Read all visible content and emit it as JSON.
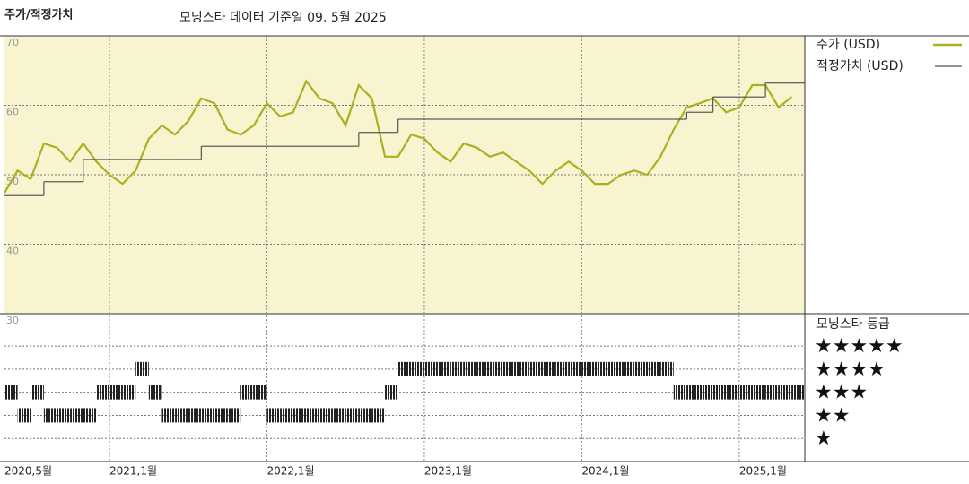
{
  "chart_data": [
    {
      "type": "line",
      "title": "주가/적정가치",
      "subtitle": "모닝스타 데이터 기준일 09. 5월 2025",
      "x": [
        "2020-05",
        "2020-06",
        "2020-07",
        "2020-08",
        "2020-09",
        "2020-10",
        "2020-11",
        "2020-12",
        "2021-01",
        "2021-02",
        "2021-03",
        "2021-04",
        "2021-05",
        "2021-06",
        "2021-07",
        "2021-08",
        "2021-09",
        "2021-10",
        "2021-11",
        "2021-12",
        "2022-01",
        "2022-02",
        "2022-03",
        "2022-04",
        "2022-05",
        "2022-06",
        "2022-07",
        "2022-08",
        "2022-09",
        "2022-10",
        "2022-11",
        "2022-12",
        "2023-01",
        "2023-02",
        "2023-03",
        "2023-04",
        "2023-05",
        "2023-06",
        "2023-07",
        "2023-08",
        "2023-09",
        "2023-10",
        "2023-11",
        "2023-12",
        "2024-01",
        "2024-02",
        "2024-03",
        "2024-04",
        "2024-05",
        "2024-06",
        "2024-07",
        "2024-08",
        "2024-09",
        "2024-10",
        "2024-11",
        "2024-12",
        "2025-01",
        "2025-02",
        "2025-03",
        "2025-04",
        "2025-05"
      ],
      "series": [
        {
          "name": "주가 (USD)",
          "color": "#aab021",
          "values": [
            47.4,
            50.6,
            49.4,
            54.5,
            53.9,
            51.9,
            54.5,
            51.9,
            50,
            48.7,
            50.6,
            55.2,
            57.1,
            55.8,
            57.7,
            61,
            60.3,
            56.5,
            55.8,
            57.1,
            60.3,
            58.4,
            59,
            63.5,
            61,
            60.3,
            57.1,
            62.9,
            61,
            52.6,
            52.6,
            55.8,
            55.2,
            53.2,
            51.9,
            54.5,
            53.9,
            52.6,
            53.2,
            51.9,
            50.6,
            48.7,
            50.6,
            51.9,
            50.6,
            48.7,
            48.7,
            50,
            50.6,
            50,
            52.6,
            56.5,
            59.7,
            60.3,
            61,
            59,
            59.7,
            62.9,
            62.9,
            59.7,
            61.2
          ]
        },
        {
          "name": "적정가치 (USD)",
          "color": "#555555",
          "values": [
            47,
            47,
            47,
            49,
            49,
            49,
            52.2,
            52.2,
            52.2,
            52.2,
            52.2,
            52.2,
            52.2,
            52.2,
            52.2,
            54.1,
            54.1,
            54.1,
            54.1,
            54.1,
            54.1,
            54.1,
            54.1,
            54.1,
            54.1,
            54.1,
            54.1,
            56.1,
            56.1,
            56.1,
            58,
            58,
            58,
            58,
            58,
            58,
            58,
            58,
            58,
            58,
            58,
            58,
            58,
            58,
            58,
            58,
            58,
            58,
            58,
            58,
            58,
            58,
            59,
            59,
            61.2,
            61.2,
            61.2,
            61.2,
            63.2,
            63.2,
            63.2
          ]
        }
      ],
      "ylim": [
        30,
        70
      ],
      "yticks": [
        30,
        40,
        50,
        60,
        70
      ],
      "xlim": [
        "2020-05",
        "2025-06"
      ],
      "xticks": [
        {
          "value": "2020-05",
          "label": "2020,5월"
        },
        {
          "value": "2021-01",
          "label": "2021,1월"
        },
        {
          "value": "2022-01",
          "label": "2022,1월"
        },
        {
          "value": "2023-01",
          "label": "2023,1월"
        },
        {
          "value": "2024-01",
          "label": "2024,1월"
        },
        {
          "value": "2025-01",
          "label": "2025,1월"
        }
      ],
      "grid": true
    },
    {
      "type": "rating",
      "title": "모닝스타 등급",
      "x": [
        "2020-05",
        "2020-06",
        "2020-07",
        "2020-08",
        "2020-09",
        "2020-10",
        "2020-11",
        "2020-12",
        "2021-01",
        "2021-02",
        "2021-03",
        "2021-04",
        "2021-05",
        "2021-06",
        "2021-07",
        "2021-08",
        "2021-09",
        "2021-10",
        "2021-11",
        "2021-12",
        "2022-01",
        "2022-02",
        "2022-03",
        "2022-04",
        "2022-05",
        "2022-06",
        "2022-07",
        "2022-08",
        "2022-09",
        "2022-10",
        "2022-11",
        "2022-12",
        "2023-01",
        "2023-02",
        "2023-03",
        "2023-04",
        "2023-05",
        "2023-06",
        "2023-07",
        "2023-08",
        "2023-09",
        "2023-10",
        "2023-11",
        "2023-12",
        "2024-01",
        "2024-02",
        "2024-03",
        "2024-04",
        "2024-05",
        "2024-06",
        "2024-07",
        "2024-08",
        "2024-09",
        "2024-10",
        "2024-11",
        "2024-12",
        "2025-01",
        "2025-02",
        "2025-03",
        "2025-04",
        "2025-05"
      ],
      "values": [
        3,
        2,
        3,
        2,
        2,
        2,
        2,
        3,
        3,
        3,
        4,
        3,
        2,
        2,
        2,
        2,
        2,
        2,
        3,
        3,
        2,
        2,
        2,
        2,
        2,
        2,
        2,
        2,
        2,
        3,
        4,
        4,
        4,
        4,
        4,
        4,
        4,
        4,
        4,
        4,
        4,
        4,
        4,
        4,
        4,
        4,
        4,
        4,
        4,
        4,
        4,
        3,
        3,
        3,
        3,
        3,
        3,
        3,
        3,
        3,
        3
      ],
      "ylim": [
        0,
        6.4
      ],
      "yticks": [
        {
          "value": 5,
          "label": "★★★★★"
        },
        {
          "value": 4,
          "label": "★★★★"
        },
        {
          "value": 3,
          "label": "★★★"
        },
        {
          "value": 2,
          "label": "★★"
        },
        {
          "value": 1,
          "label": "★"
        }
      ],
      "color": "#222222"
    }
  ]
}
